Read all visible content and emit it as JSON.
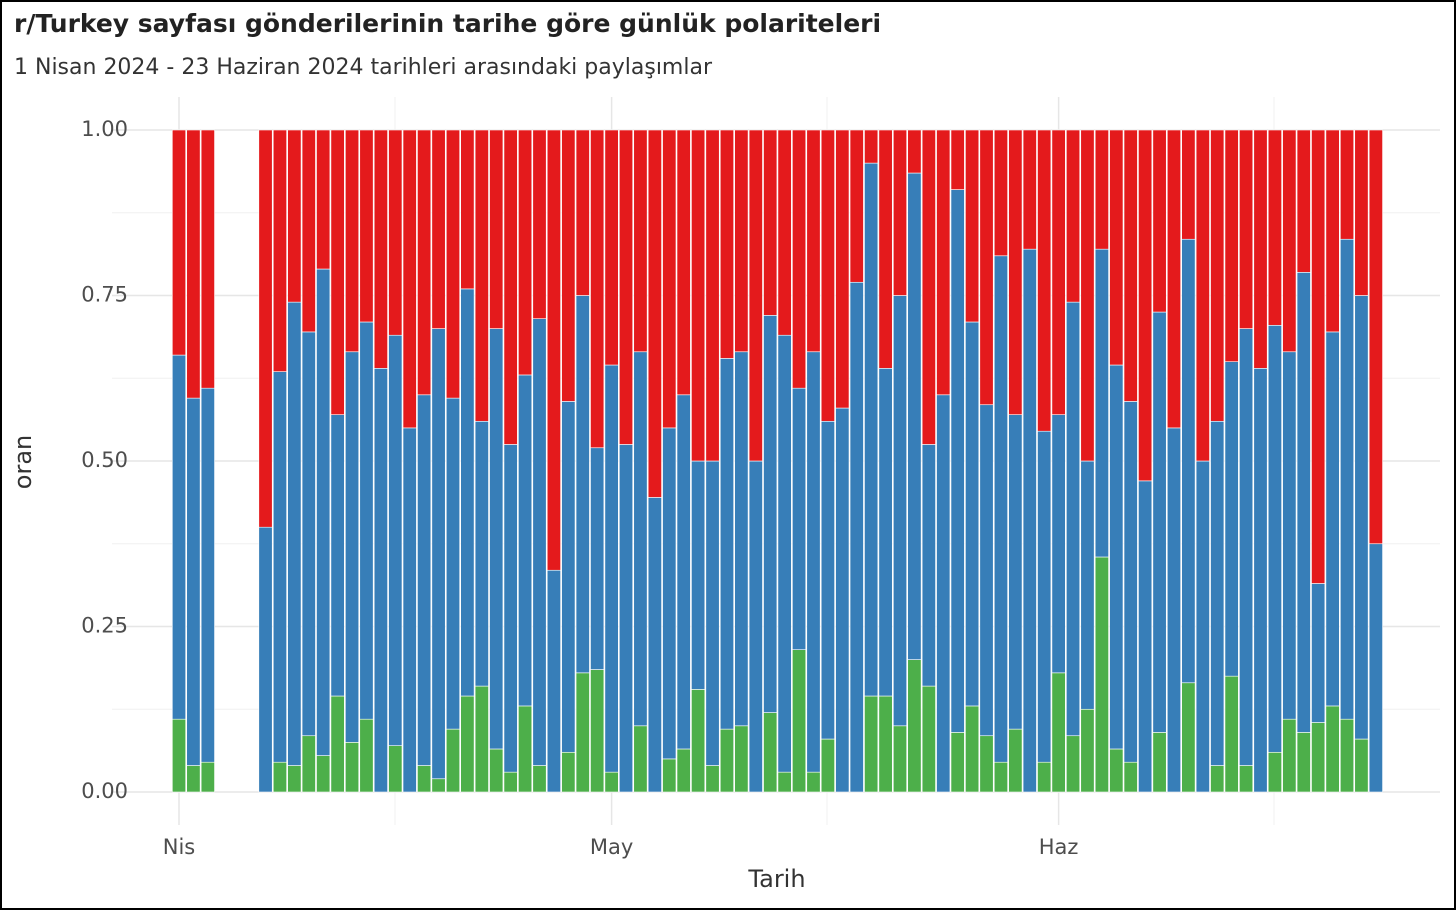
{
  "chart_data": {
    "type": "stacked_bar",
    "title": "r/Turkey sayfası gönderilerinin tarihe göre günlük polariteleri",
    "subtitle": "1 Nisan 2024 - 23 Haziran 2024 tarihleri arasındaki paylaşımlar",
    "x_label": "Tarih",
    "y_label": "oran",
    "categories": [
      "Nis",
      null,
      null,
      null,
      null,
      null,
      null,
      null,
      null,
      null,
      null,
      null,
      null,
      null,
      null,
      null,
      null,
      null,
      null,
      null,
      null,
      null,
      null,
      null,
      null,
      null,
      null,
      null,
      null,
      null,
      "May",
      null,
      null,
      null,
      null,
      null,
      null,
      null,
      null,
      null,
      null,
      null,
      null,
      null,
      null,
      null,
      null,
      null,
      null,
      null,
      null,
      null,
      null,
      null,
      null,
      null,
      null,
      null,
      null,
      null,
      null,
      "Haz",
      null,
      null,
      null,
      null,
      null,
      null,
      null,
      null,
      null,
      null,
      null,
      null,
      null,
      null,
      null,
      null,
      null,
      null,
      null,
      null,
      null,
      null
    ],
    "series": [
      {
        "color": "#4daf4a",
        "values": [
          0.11,
          0.04,
          0.045,
          null,
          null,
          null,
          0,
          0.045,
          0.04,
          0.085,
          0.055,
          0.145,
          0.075,
          0.11,
          0,
          0.07,
          0,
          0.04,
          0.02,
          0.095,
          0.145,
          0.16,
          0.065,
          0.03,
          0.13,
          0.04,
          0,
          0.06,
          0.18,
          0.185,
          0.03,
          0,
          0.1,
          0,
          0.05,
          0.065,
          0.155,
          0.04,
          0.095,
          0.1,
          0,
          0.12,
          0.03,
          0.215,
          0.03,
          0.08,
          0,
          0,
          0.145,
          0.145,
          0.1,
          0.2,
          0.16,
          0,
          0.09,
          0.13,
          0.085,
          0.045,
          0.095,
          0,
          0.045,
          0.18,
          0.085,
          0.125,
          0.355,
          0.065,
          0.045,
          0,
          0.09,
          0,
          0.165,
          0,
          0.04,
          0.175,
          0.04,
          0,
          0.06,
          0.11,
          0.09,
          0.105,
          0.13,
          0.11,
          0.08,
          0
        ]
      },
      {
        "color": "#377eb8",
        "values": [
          0.55,
          0.555,
          0.565,
          null,
          null,
          null,
          0.4,
          0.59,
          0.7,
          0.61,
          0.735,
          0.425,
          0.59,
          0.6,
          0.64,
          0.62,
          0.55,
          0.56,
          0.68,
          0.5,
          0.615,
          0.4,
          0.635,
          0.495,
          0.5,
          0.675,
          0.335,
          0.53,
          0.57,
          0.335,
          0.615,
          0.525,
          0.565,
          0.445,
          0.5,
          0.535,
          0.345,
          0.46,
          0.56,
          0.565,
          0.5,
          0.6,
          0.66,
          0.395,
          0.635,
          0.48,
          0.58,
          0.77,
          0.805,
          0.495,
          0.65,
          0.735,
          0.365,
          0.6,
          0.82,
          0.58,
          0.5,
          0.765,
          0.475,
          0.82,
          0.5,
          0.39,
          0.655,
          0.375,
          0.465,
          0.58,
          0.545,
          0.47,
          0.635,
          0.55,
          0.67,
          0.5,
          0.52,
          0.475,
          0.66,
          0.64,
          0.645,
          0.555,
          0.695,
          0.21,
          0.565,
          0.725,
          0.67,
          0.375
        ]
      },
      {
        "color": "#e41a1c",
        "values": [
          0.34,
          0.405,
          0.39,
          null,
          null,
          null,
          0.6,
          0.365,
          0.26,
          0.305,
          0.21,
          0.43,
          0.335,
          0.29,
          0.36,
          0.31,
          0.45,
          0.4,
          0.3,
          0.405,
          0.24,
          0.44,
          0.3,
          0.475,
          0.37,
          0.285,
          0.665,
          0.41,
          0.25,
          0.48,
          0.355,
          0.475,
          0.335,
          0.555,
          0.45,
          0.4,
          0.5,
          0.5,
          0.345,
          0.335,
          0.5,
          0.28,
          0.31,
          0.39,
          0.335,
          0.44,
          0.42,
          0.23,
          0.05,
          0.36,
          0.25,
          0.065,
          0.475,
          0.4,
          0.09,
          0.29,
          0.415,
          0.19,
          0.43,
          0.18,
          0.455,
          0.43,
          0.26,
          0.5,
          0.18,
          0.355,
          0.41,
          0.53,
          0.275,
          0.45,
          0.165,
          0.5,
          0.44,
          0.35,
          0.3,
          0.36,
          0.295,
          0.335,
          0.215,
          0.685,
          0.305,
          0.165,
          0.25,
          0.625
        ]
      }
    ],
    "ylim": [
      0,
      1
    ],
    "yticks": [
      {
        "value": 0,
        "label": "0.00"
      },
      {
        "value": 0.25,
        "label": "0.25"
      },
      {
        "value": 0.5,
        "label": "0.50"
      },
      {
        "value": 0.75,
        "label": "0.75"
      },
      {
        "value": 1,
        "label": "1.00"
      }
    ],
    "grid": true
  }
}
